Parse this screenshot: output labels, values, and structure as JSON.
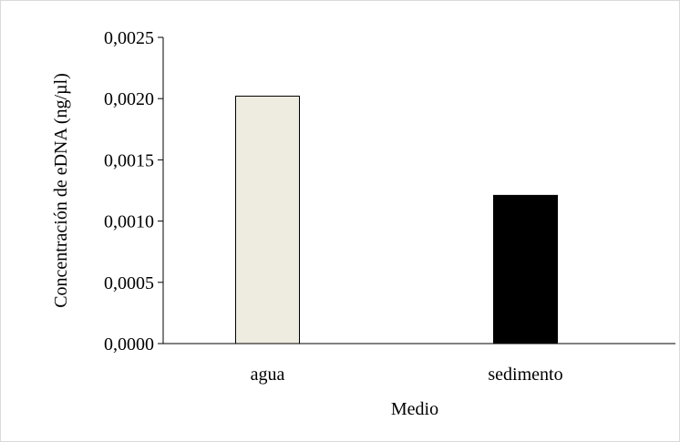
{
  "chart_data": {
    "type": "bar",
    "categories": [
      "agua",
      "sedimento"
    ],
    "values": [
      0.00202,
      0.00121
    ],
    "title": "",
    "xlabel": "Medio",
    "ylabel": "Concentración de eDNA (ng/µl)",
    "ylim": [
      0,
      0.0025
    ],
    "yticks": [
      "0,0000",
      "0,0005",
      "0,0010",
      "0,0015",
      "0,0020",
      "0,0025"
    ],
    "grid": false,
    "legend": "none",
    "colors": {
      "agua": "#eeece1",
      "sedimento": "#000000",
      "bar_border": "#000000",
      "axis": "#000000"
    }
  }
}
